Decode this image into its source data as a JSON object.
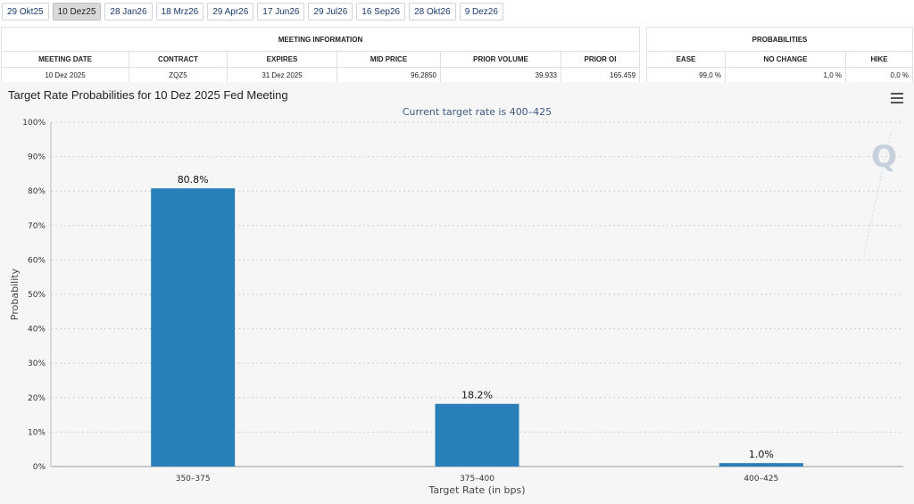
{
  "tabs": [
    "29 Okt25",
    "10 Dez25",
    "28 Jan26",
    "18 Mrz26",
    "29 Apr26",
    "17 Jun26",
    "29 Jul26",
    "16 Sep26",
    "28 Okt26",
    "9 Dez26"
  ],
  "active_tab": "10 Dez25",
  "meeting_info": {
    "title": "MEETING INFORMATION",
    "headers": [
      "MEETING DATE",
      "CONTRACT",
      "EXPIRES",
      "MID PRICE",
      "PRIOR VOLUME",
      "PRIOR OI"
    ],
    "row": [
      "10 Dez 2025",
      "ZQZ5",
      "31 Dez 2025",
      "96,2850",
      "39.933",
      "165.459"
    ]
  },
  "probabilities": {
    "title": "PROBABILITIES",
    "headers": [
      "EASE",
      "NO CHANGE",
      "HIKE"
    ],
    "row": [
      "99,0 %",
      "1,0 %",
      "0,0 %"
    ]
  },
  "colors": {
    "bar": "#2980b9",
    "title_subtitle": "#3d5a80"
  },
  "watermark_icon": "q-logo",
  "chart_data": {
    "type": "bar",
    "title": "Target Rate Probabilities for 10 Dez 2025 Fed Meeting",
    "subtitle": "Current target rate is 400–425",
    "categories": [
      "350–375",
      "375–400",
      "400–425"
    ],
    "values": [
      80.8,
      18.2,
      1.0
    ],
    "data_labels": [
      "80.8%",
      "18.2%",
      "1.0%"
    ],
    "xlabel": "Target Rate (in bps)",
    "ylabel": "Probability",
    "ylim": [
      0,
      100
    ],
    "yticks": [
      "0%",
      "10%",
      "20%",
      "30%",
      "40%",
      "50%",
      "60%",
      "70%",
      "80%",
      "90%",
      "100%"
    ],
    "grid": true
  }
}
